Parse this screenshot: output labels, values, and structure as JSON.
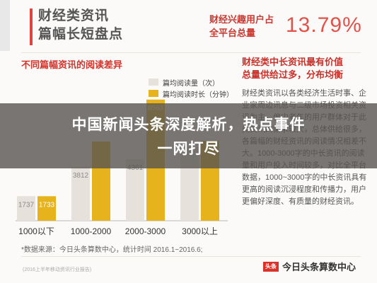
{
  "header": {
    "title_line1": "财经类资讯",
    "title_line2": "篇幅长短盘点",
    "kpi_label_line1": "财经兴趣用户占",
    "kpi_label_line2": "全平台总量",
    "kpi_value": "13.79%"
  },
  "chart_data": {
    "type": "bar",
    "title": "不同篇幅资讯的阅读差异",
    "categories": [
      "1000以下",
      "1000-2000",
      "2000-3000",
      "3000以上"
    ],
    "series": [
      {
        "name": "篇均阅读量（次）",
        "values": [
          1737,
          3812,
          4361,
          5200
        ],
        "labels": [
          "1737",
          "3812",
          "4361",
          ""
        ],
        "color": "#e6e1da"
      },
      {
        "name": "篇均阅读时长（分钟）",
        "values": [
          1733,
          5600,
          8563,
          5650
        ],
        "labels": [
          "1733",
          "",
          "8563",
          ""
        ],
        "color": "#e6b31c"
      }
    ],
    "xlabel": "",
    "ylabel": "",
    "ylim": [
      0,
      9000
    ]
  },
  "right_panel": {
    "title_line1": "财经类中长资讯最有价值",
    "title_line2": "总量供给过多，分布均衡",
    "body": "财经类资讯以各类经济生活时事、企业家周边讯息与二级市场投资相关资讯为主，偏中老年的用户群体对于此类资讯的需求较大，总体供给很多，各篇幅的财经资讯的阅读情况相差不大。1000-3000字的中长资讯的阅读量和用户投入时间较多，对比全平台数据，1000~3000字的中长资讯具有更高的阅读沉浸程度和传播力，用户更偏好深度、有质量的财经资讯。"
  },
  "footnote": "*数据来源：今日头条算数中心，统计时间 2016.1~2016.6;",
  "footer": {
    "small_text": "(2016上半年移动资讯行业报告)",
    "brand_badge": "头条",
    "brand_name": "今日头条算数中心"
  },
  "banner": {
    "line1": "中国新闻头条深度解析，热点事件",
    "line2": "一网打尽"
  },
  "colors": {
    "accent_red": "#d2342c",
    "bar_grey": "#e6e1da",
    "bar_gold": "#e6b31c",
    "overlay": "#585450"
  }
}
